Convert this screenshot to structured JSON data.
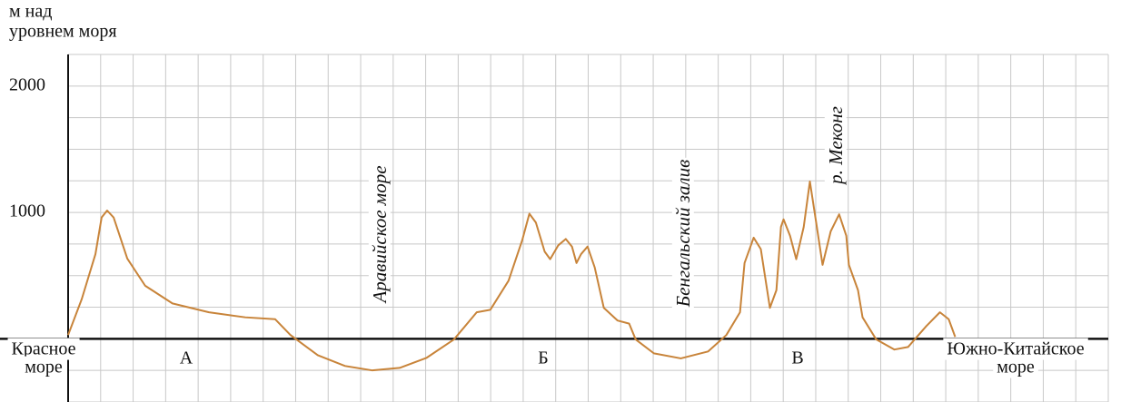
{
  "chart_data": {
    "type": "line",
    "ylabel": [
      "м над",
      "уровнем моря"
    ],
    "annotations": [
      "Аравийское море",
      "Бенгальский залив",
      "р. Меконг"
    ],
    "regions": [
      "А",
      "Б",
      "В"
    ],
    "left_label": [
      "Красное",
      "море"
    ],
    "right_label": [
      "Южно-Китайское",
      "море"
    ],
    "xlim": [
      0,
      32
    ],
    "xticks": [
      0,
      1,
      2,
      3,
      4,
      5,
      6,
      7,
      8,
      9,
      10,
      11,
      12,
      13,
      14,
      15,
      16,
      17,
      18,
      19,
      20,
      21,
      22,
      23,
      24,
      25,
      26,
      27,
      28,
      29,
      30,
      31,
      32
    ],
    "ylim": [
      -500,
      2250
    ],
    "yticks": [
      1000,
      2000
    ],
    "ygrid": [
      -500,
      -250,
      0,
      250,
      500,
      750,
      1000,
      1250,
      1500,
      1750,
      2000,
      2250
    ],
    "grid": true,
    "series": [
      {
        "color": "#c8843a",
        "x": [
          0,
          0.42,
          0.84,
          1.03,
          1.2,
          1.4,
          1.82,
          2.37,
          3.21,
          4.33,
          5.45,
          6.37,
          6.84,
          7.68,
          8.52,
          9.36,
          10.2,
          11.03,
          11.87,
          12.57,
          12.99,
          13.55,
          13.97,
          14.19,
          14.39,
          14.66,
          14.83,
          15.08,
          15.31,
          15.5,
          15.64,
          15.78,
          15.98,
          16.2,
          16.48,
          16.9,
          17.26,
          17.46,
          18.02,
          18.85,
          19.69,
          20.25,
          20.67,
          20.81,
          21.09,
          21.31,
          21.59,
          21.79,
          21.93,
          22.01,
          22.21,
          22.4,
          22.63,
          22.82,
          22.99,
          23.21,
          23.46,
          23.72,
          23.94,
          24.02,
          24.3,
          24.44,
          24.86,
          25.42,
          25.84,
          26.4,
          26.82,
          27.09,
          27.29
        ],
        "values": [
          30,
          315,
          670,
          960,
          1015,
          960,
          635,
          420,
          280,
          210,
          170,
          155,
          30,
          -130,
          -215,
          -250,
          -230,
          -150,
          -5,
          210,
          230,
          460,
          780,
          990,
          920,
          690,
          630,
          740,
          790,
          730,
          600,
          670,
          730,
          565,
          245,
          145,
          120,
          -5,
          -115,
          -155,
          -100,
          30,
          210,
          600,
          800,
          710,
          245,
          385,
          885,
          945,
          815,
          630,
          885,
          1245,
          960,
          585,
          850,
          985,
          815,
          585,
          385,
          170,
          -5,
          -85,
          -65,
          100,
          210,
          155,
          15
        ]
      }
    ]
  }
}
